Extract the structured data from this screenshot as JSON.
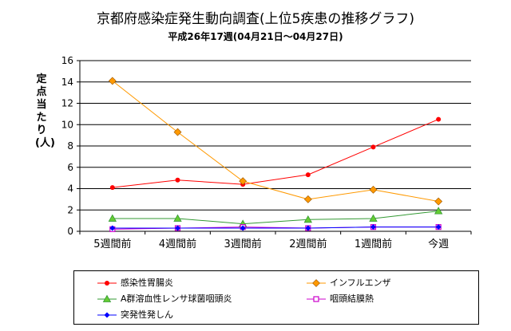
{
  "chart_data": {
    "type": "line",
    "title": "京都府感染症発生動向調査(上位5疾患の推移グラフ)",
    "subtitle": "平成26年17週(04月21日～04月27日)",
    "ylabel": "定点当たり(人)",
    "xlabel": "",
    "ylim": [
      0,
      16
    ],
    "yticks": [
      0,
      2,
      4,
      6,
      8,
      10,
      12,
      14,
      16
    ],
    "grid": true,
    "legend_position": "bottom",
    "categories": [
      "5週間前",
      "4週間前",
      "3週間前",
      "2週間前",
      "1週間前",
      "今週"
    ],
    "series": [
      {
        "name": "感染性胃腸炎",
        "color": "#ff0000",
        "marker": "circle",
        "values": [
          4.1,
          4.8,
          4.4,
          5.3,
          7.9,
          10.5
        ]
      },
      {
        "name": "インフルエンザ",
        "color": "#ff9900",
        "marker": "diamond",
        "values": [
          14.1,
          9.3,
          4.7,
          3.0,
          3.9,
          2.8
        ]
      },
      {
        "name": "A群溶血性レンサ球菌咽頭炎",
        "color": "#339933",
        "marker": "triangle",
        "values": [
          1.2,
          1.2,
          0.7,
          1.1,
          1.2,
          1.9
        ]
      },
      {
        "name": "咽頭結膜熱",
        "color": "#cc00cc",
        "marker": "square",
        "values": [
          0.2,
          0.3,
          0.4,
          0.3,
          0.4,
          0.4
        ]
      },
      {
        "name": "突発性発しん",
        "color": "#0000ff",
        "marker": "diamond-small",
        "values": [
          0.3,
          0.3,
          0.3,
          0.3,
          0.4,
          0.4
        ]
      }
    ]
  }
}
